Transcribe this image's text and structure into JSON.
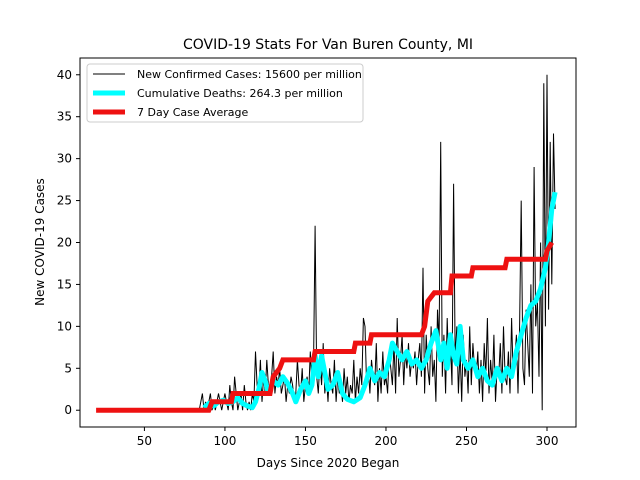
{
  "chart_data": {
    "type": "line",
    "title": "COVID-19 Stats For Van Buren County, MI",
    "xlabel": "Days Since 2020 Began",
    "ylabel": "New COVID-19 Cases",
    "xlim": [
      10,
      318
    ],
    "ylim": [
      -2,
      42
    ],
    "xticks": [
      50,
      100,
      150,
      200,
      250,
      300
    ],
    "yticks": [
      0,
      5,
      10,
      15,
      20,
      25,
      30,
      35,
      40
    ],
    "grid": false,
    "legend_position": "top-left",
    "colors": {
      "new_cases": "#000000",
      "deaths": "#00ffff",
      "average": "#ee1111"
    },
    "series": [
      {
        "key": "new_cases",
        "name": "New Confirmed Cases: 15600 per million",
        "style": "thin",
        "points": [
          [
            84,
            0
          ],
          [
            86,
            2
          ],
          [
            87,
            0
          ],
          [
            88,
            1
          ],
          [
            89,
            0
          ],
          [
            90,
            1
          ],
          [
            91,
            2
          ],
          [
            92,
            0
          ],
          [
            93,
            1
          ],
          [
            94,
            0
          ],
          [
            95,
            1
          ],
          [
            96,
            2
          ],
          [
            97,
            1
          ],
          [
            98,
            0
          ],
          [
            99,
            1
          ],
          [
            100,
            2
          ],
          [
            101,
            1
          ],
          [
            102,
            0
          ],
          [
            103,
            3
          ],
          [
            104,
            1
          ],
          [
            105,
            0
          ],
          [
            106,
            4
          ],
          [
            107,
            2
          ],
          [
            108,
            0
          ],
          [
            109,
            1
          ],
          [
            110,
            2
          ],
          [
            111,
            0
          ],
          [
            112,
            3
          ],
          [
            113,
            1
          ],
          [
            114,
            0
          ],
          [
            115,
            1
          ],
          [
            116,
            0
          ],
          [
            117,
            2
          ],
          [
            118,
            1
          ],
          [
            119,
            7
          ],
          [
            120,
            3
          ],
          [
            121,
            2
          ],
          [
            122,
            6
          ],
          [
            123,
            1
          ],
          [
            124,
            4
          ],
          [
            125,
            2
          ],
          [
            126,
            6
          ],
          [
            127,
            3
          ],
          [
            128,
            2
          ],
          [
            129,
            4
          ],
          [
            130,
            7
          ],
          [
            131,
            2
          ],
          [
            132,
            4
          ],
          [
            133,
            3
          ],
          [
            134,
            5
          ],
          [
            135,
            2
          ],
          [
            136,
            3
          ],
          [
            137,
            4
          ],
          [
            138,
            1
          ],
          [
            139,
            3
          ],
          [
            140,
            2
          ],
          [
            141,
            4
          ],
          [
            142,
            3
          ],
          [
            143,
            1
          ],
          [
            144,
            2
          ],
          [
            145,
            6
          ],
          [
            146,
            3
          ],
          [
            147,
            2
          ],
          [
            148,
            5
          ],
          [
            149,
            1
          ],
          [
            150,
            3
          ],
          [
            151,
            4
          ],
          [
            152,
            2
          ],
          [
            153,
            7
          ],
          [
            154,
            3
          ],
          [
            155,
            5
          ],
          [
            156,
            22
          ],
          [
            157,
            4
          ],
          [
            158,
            2
          ],
          [
            159,
            6
          ],
          [
            160,
            3
          ],
          [
            161,
            8
          ],
          [
            162,
            2
          ],
          [
            163,
            4
          ],
          [
            164,
            1
          ],
          [
            165,
            5
          ],
          [
            166,
            3
          ],
          [
            167,
            2
          ],
          [
            168,
            6
          ],
          [
            169,
            1
          ],
          [
            170,
            4
          ],
          [
            171,
            2
          ],
          [
            172,
            3
          ],
          [
            173,
            1
          ],
          [
            174,
            5
          ],
          [
            175,
            2
          ],
          [
            176,
            4
          ],
          [
            177,
            1
          ],
          [
            178,
            3
          ],
          [
            179,
            2
          ],
          [
            180,
            6
          ],
          [
            181,
            1
          ],
          [
            182,
            4
          ],
          [
            183,
            2
          ],
          [
            184,
            5
          ],
          [
            185,
            3
          ],
          [
            186,
            11
          ],
          [
            187,
            10
          ],
          [
            188,
            3
          ],
          [
            189,
            5
          ],
          [
            190,
            2
          ],
          [
            191,
            6
          ],
          [
            192,
            4
          ],
          [
            193,
            3
          ],
          [
            194,
            8
          ],
          [
            195,
            1
          ],
          [
            196,
            5
          ],
          [
            197,
            2
          ],
          [
            198,
            7
          ],
          [
            199,
            3
          ],
          [
            200,
            4
          ],
          [
            201,
            2
          ],
          [
            202,
            7
          ],
          [
            203,
            5
          ],
          [
            204,
            3
          ],
          [
            205,
            8
          ],
          [
            206,
            2
          ],
          [
            207,
            11
          ],
          [
            208,
            4
          ],
          [
            209,
            6
          ],
          [
            210,
            9
          ],
          [
            211,
            3
          ],
          [
            212,
            7
          ],
          [
            213,
            5
          ],
          [
            214,
            8
          ],
          [
            215,
            4
          ],
          [
            216,
            6
          ],
          [
            217,
            5
          ],
          [
            218,
            7
          ],
          [
            219,
            3
          ],
          [
            220,
            6
          ],
          [
            221,
            8
          ],
          [
            222,
            4
          ],
          [
            223,
            17
          ],
          [
            224,
            2
          ],
          [
            225,
            9
          ],
          [
            226,
            5
          ],
          [
            227,
            3
          ],
          [
            228,
            10
          ],
          [
            229,
            4
          ],
          [
            230,
            6
          ],
          [
            231,
            1
          ],
          [
            232,
            12
          ],
          [
            233,
            8
          ],
          [
            234,
            32
          ],
          [
            235,
            4
          ],
          [
            236,
            9
          ],
          [
            237,
            2
          ],
          [
            238,
            11
          ],
          [
            239,
            5
          ],
          [
            240,
            8
          ],
          [
            241,
            3
          ],
          [
            242,
            27
          ],
          [
            243,
            6
          ],
          [
            244,
            10
          ],
          [
            245,
            2
          ],
          [
            246,
            7
          ],
          [
            247,
            1
          ],
          [
            248,
            9
          ],
          [
            249,
            4
          ],
          [
            250,
            6
          ],
          [
            251,
            2
          ],
          [
            252,
            10
          ],
          [
            253,
            3
          ],
          [
            254,
            8
          ],
          [
            255,
            5
          ],
          [
            256,
            4
          ],
          [
            257,
            7
          ],
          [
            258,
            2
          ],
          [
            259,
            6
          ],
          [
            260,
            1
          ],
          [
            261,
            8
          ],
          [
            262,
            4
          ],
          [
            263,
            11
          ],
          [
            264,
            2
          ],
          [
            265,
            6
          ],
          [
            266,
            3
          ],
          [
            267,
            9
          ],
          [
            268,
            1
          ],
          [
            269,
            5
          ],
          [
            270,
            4
          ],
          [
            271,
            8
          ],
          [
            272,
            2
          ],
          [
            273,
            10
          ],
          [
            274,
            4
          ],
          [
            275,
            3
          ],
          [
            276,
            7
          ],
          [
            277,
            2
          ],
          [
            278,
            11
          ],
          [
            279,
            4
          ],
          [
            280,
            6
          ],
          [
            281,
            9
          ],
          [
            282,
            2
          ],
          [
            283,
            10
          ],
          [
            284,
            25
          ],
          [
            285,
            5
          ],
          [
            286,
            3
          ],
          [
            287,
            12
          ],
          [
            288,
            8
          ],
          [
            289,
            4
          ],
          [
            290,
            15
          ],
          [
            291,
            2
          ],
          [
            292,
            29
          ],
          [
            293,
            10
          ],
          [
            294,
            13
          ],
          [
            295,
            4
          ],
          [
            296,
            20
          ],
          [
            297,
            0
          ],
          [
            298,
            39
          ],
          [
            299,
            10
          ],
          [
            300,
            40
          ],
          [
            301,
            12
          ],
          [
            302,
            32
          ],
          [
            303,
            15
          ],
          [
            304,
            33
          ],
          [
            305,
            24
          ]
        ]
      },
      {
        "key": "deaths",
        "name": "Cumulative Deaths: 264.3 per million",
        "style": "thick",
        "points": [
          [
            87,
            0.3
          ],
          [
            90,
            0.8
          ],
          [
            93,
            0.5
          ],
          [
            96,
            1.0
          ],
          [
            99,
            1.2
          ],
          [
            102,
            0.8
          ],
          [
            105,
            1.0
          ],
          [
            108,
            1.5
          ],
          [
            111,
            0.8
          ],
          [
            114,
            0.5
          ],
          [
            117,
            0.3
          ],
          [
            119,
            1.0
          ],
          [
            121,
            2.5
          ],
          [
            123,
            4.5
          ],
          [
            125,
            3.5
          ],
          [
            127,
            2.0
          ],
          [
            130,
            3.5
          ],
          [
            133,
            3.0
          ],
          [
            136,
            4.0
          ],
          [
            139,
            3.2
          ],
          [
            142,
            2.0
          ],
          [
            144,
            1.0
          ],
          [
            147,
            2.5
          ],
          [
            150,
            3.5
          ],
          [
            152,
            2.0
          ],
          [
            154,
            3.0
          ],
          [
            156,
            6.5
          ],
          [
            158,
            4.0
          ],
          [
            160,
            6.5
          ],
          [
            162,
            4.5
          ],
          [
            164,
            2.5
          ],
          [
            167,
            3.0
          ],
          [
            170,
            4.5
          ],
          [
            173,
            2.0
          ],
          [
            176,
            1.3
          ],
          [
            180,
            1.0
          ],
          [
            184,
            1.5
          ],
          [
            187,
            3.0
          ],
          [
            190,
            5.0
          ],
          [
            193,
            3.5
          ],
          [
            196,
            4.5
          ],
          [
            199,
            4.0
          ],
          [
            202,
            6.0
          ],
          [
            204,
            8.0
          ],
          [
            207,
            7.0
          ],
          [
            210,
            6.0
          ],
          [
            213,
            7.0
          ],
          [
            216,
            5.5
          ],
          [
            219,
            6.0
          ],
          [
            222,
            5.0
          ],
          [
            225,
            6.0
          ],
          [
            228,
            8.0
          ],
          [
            231,
            9.5
          ],
          [
            234,
            6.0
          ],
          [
            236,
            8.0
          ],
          [
            238,
            5.0
          ],
          [
            240,
            9.0
          ],
          [
            242,
            6.5
          ],
          [
            244,
            5.5
          ],
          [
            246,
            10.0
          ],
          [
            248,
            6.0
          ],
          [
            251,
            5.0
          ],
          [
            254,
            6.0
          ],
          [
            257,
            4.0
          ],
          [
            260,
            5.0
          ],
          [
            263,
            3.5
          ],
          [
            266,
            3.0
          ],
          [
            269,
            5.0
          ],
          [
            272,
            3.5
          ],
          [
            275,
            5.0
          ],
          [
            278,
            4.0
          ],
          [
            281,
            7.0
          ],
          [
            284,
            9.0
          ],
          [
            287,
            11.0
          ],
          [
            290,
            12.5
          ],
          [
            293,
            13.0
          ],
          [
            296,
            14.5
          ],
          [
            299,
            17.0
          ],
          [
            301,
            20.0
          ],
          [
            303,
            24.0
          ],
          [
            305,
            26.0
          ]
        ]
      },
      {
        "key": "average",
        "name": "7 Day Case Average",
        "style": "thick-step",
        "points": [
          [
            20,
            0
          ],
          [
            90,
            0
          ],
          [
            92,
            1
          ],
          [
            104,
            1
          ],
          [
            105,
            2
          ],
          [
            128,
            2
          ],
          [
            130,
            4
          ],
          [
            134,
            5
          ],
          [
            136,
            6
          ],
          [
            155,
            6
          ],
          [
            156,
            7
          ],
          [
            180,
            7
          ],
          [
            181,
            8
          ],
          [
            190,
            8
          ],
          [
            191,
            9
          ],
          [
            222,
            9
          ],
          [
            224,
            10
          ],
          [
            226,
            13
          ],
          [
            230,
            14
          ],
          [
            240,
            14
          ],
          [
            241,
            16
          ],
          [
            253,
            16
          ],
          [
            254,
            17
          ],
          [
            274,
            17
          ],
          [
            275,
            18
          ],
          [
            299,
            18
          ],
          [
            300,
            19
          ],
          [
            303,
            20
          ]
        ]
      }
    ]
  }
}
